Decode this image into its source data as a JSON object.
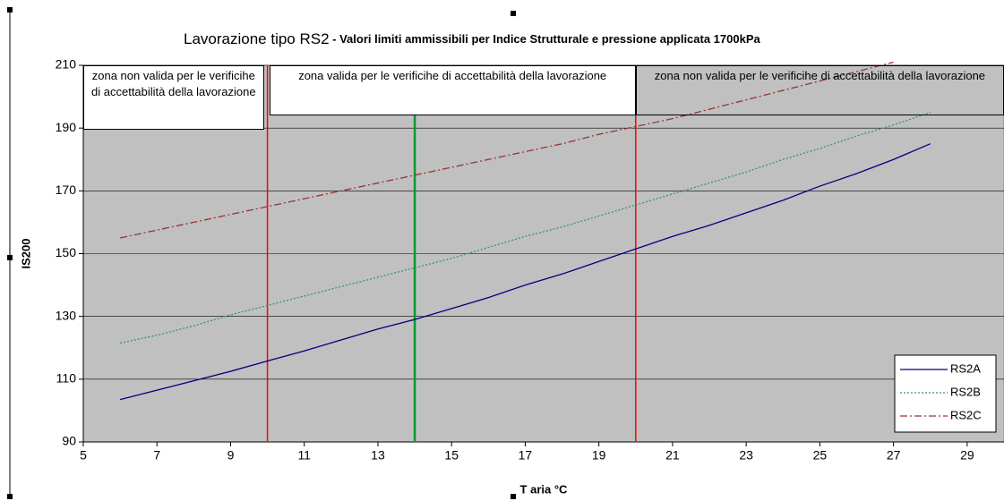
{
  "chart_data": {
    "type": "line",
    "title": "Lavorazione tipo RS2",
    "subtitle": " - Valori limiti ammissibili per Indice Strutturale e pressione applicata 1700kPa",
    "x_label": "T aria °C",
    "y_label": "IS200",
    "x": [
      6,
      7,
      8,
      9,
      10,
      11,
      12,
      13,
      14,
      15,
      16,
      17,
      18,
      19,
      20,
      21,
      22,
      23,
      24,
      25,
      26,
      27,
      28
    ],
    "series": [
      {
        "name": "RS2A",
        "color": "#000080",
        "style": "solid",
        "values": [
          103.5,
          106.5,
          109.5,
          112.5,
          115.8,
          119,
          122.5,
          126,
          129,
          132.5,
          136,
          140,
          143.5,
          147.5,
          151.5,
          155.5,
          159,
          163,
          167,
          171.5,
          175.5,
          180,
          185
        ]
      },
      {
        "name": "RS2B",
        "color": "#339966",
        "style": "dotted",
        "values": [
          121.5,
          124,
          127,
          130.5,
          133.5,
          136.5,
          139.5,
          142.5,
          145.5,
          148.5,
          152,
          155.5,
          158.5,
          162,
          165.5,
          169,
          172.5,
          176,
          180,
          183.5,
          187.5,
          191,
          195
        ]
      },
      {
        "name": "RS2C",
        "color": "#993333",
        "style": "dashdot",
        "values": [
          155,
          157.5,
          160,
          162.5,
          165,
          167.5,
          170,
          172.5,
          175,
          177.5,
          180,
          182.5,
          185,
          188,
          190.5,
          193,
          196,
          199,
          202,
          205,
          208,
          211,
          null
        ]
      }
    ],
    "reference_lines": [
      {
        "x": 10,
        "color": "#ff0000"
      },
      {
        "x": 14,
        "color": "#009933"
      },
      {
        "x": 20,
        "color": "#ff0000"
      }
    ],
    "annotations": [
      "zona non valida per le verificihe di accettabilità della lavorazione",
      "zona valida per le verificihe di accettabilità della lavorazione",
      "zona non valida per le verificihe di accettabilità della lavorazione"
    ],
    "xlim": [
      5,
      30
    ],
    "xticks": [
      5,
      7,
      9,
      11,
      13,
      15,
      17,
      19,
      21,
      23,
      25,
      27,
      29
    ],
    "ylim": [
      90,
      210
    ],
    "yticks": [
      90,
      110,
      130,
      150,
      170,
      190,
      210
    ],
    "grid": true,
    "plot_background": "#c0c0c0",
    "legend": "lower right"
  }
}
